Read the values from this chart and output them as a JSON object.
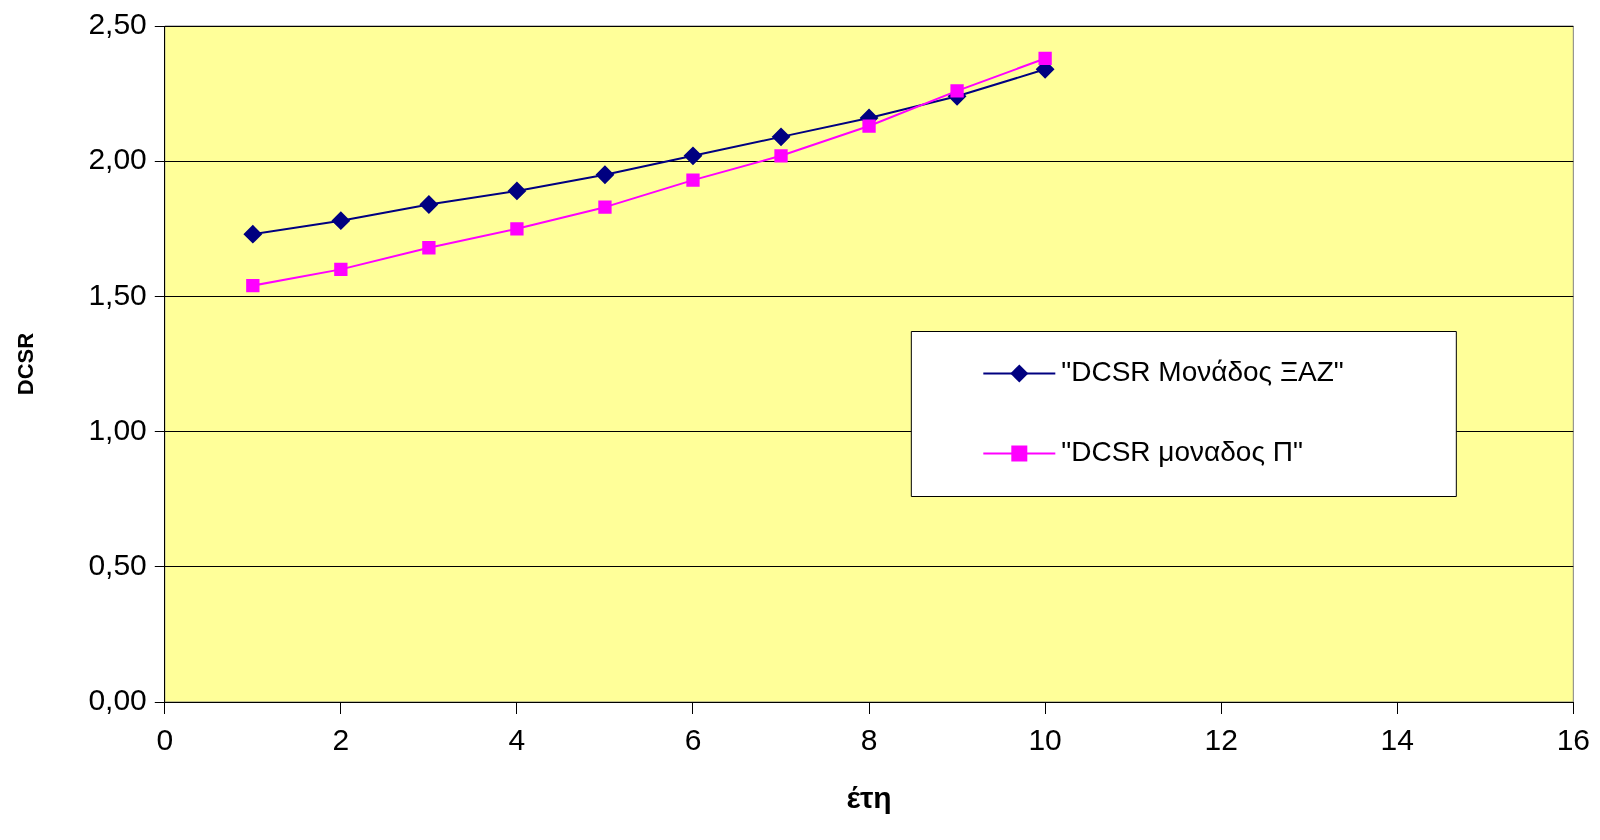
{
  "chart_data": {
    "type": "line",
    "xlabel": "έτη",
    "ylabel": "DCSR",
    "x": [
      1,
      2,
      3,
      4,
      5,
      6,
      7,
      8,
      9,
      10
    ],
    "series": [
      {
        "name": "\"DCSR Μονάδος ΞΑΖ\"",
        "color": "#000080",
        "marker": "diamond",
        "values": [
          1.73,
          1.78,
          1.84,
          1.89,
          1.95,
          2.02,
          2.09,
          2.16,
          2.24,
          2.34
        ]
      },
      {
        "name": "\"DCSR μοναδος Π\"",
        "color": "#ff00ff",
        "marker": "square",
        "values": [
          1.54,
          1.6,
          1.68,
          1.75,
          1.83,
          1.93,
          2.02,
          2.13,
          2.26,
          2.38
        ]
      }
    ],
    "xlim": [
      0,
      16
    ],
    "xticks": [
      0,
      2,
      4,
      6,
      8,
      10,
      12,
      14,
      16
    ],
    "ylim": [
      0,
      2.5
    ],
    "yticks": [
      {
        "value": 0,
        "label": "0,00"
      },
      {
        "value": 0.5,
        "label": "0,50"
      },
      {
        "value": 1,
        "label": "1,00"
      },
      {
        "value": 1.5,
        "label": "1,50"
      },
      {
        "value": 2,
        "label": "2,00"
      },
      {
        "value": 2.5,
        "label": "2,50"
      }
    ],
    "grid": "y",
    "legend": "right",
    "line_style": "solid"
  }
}
